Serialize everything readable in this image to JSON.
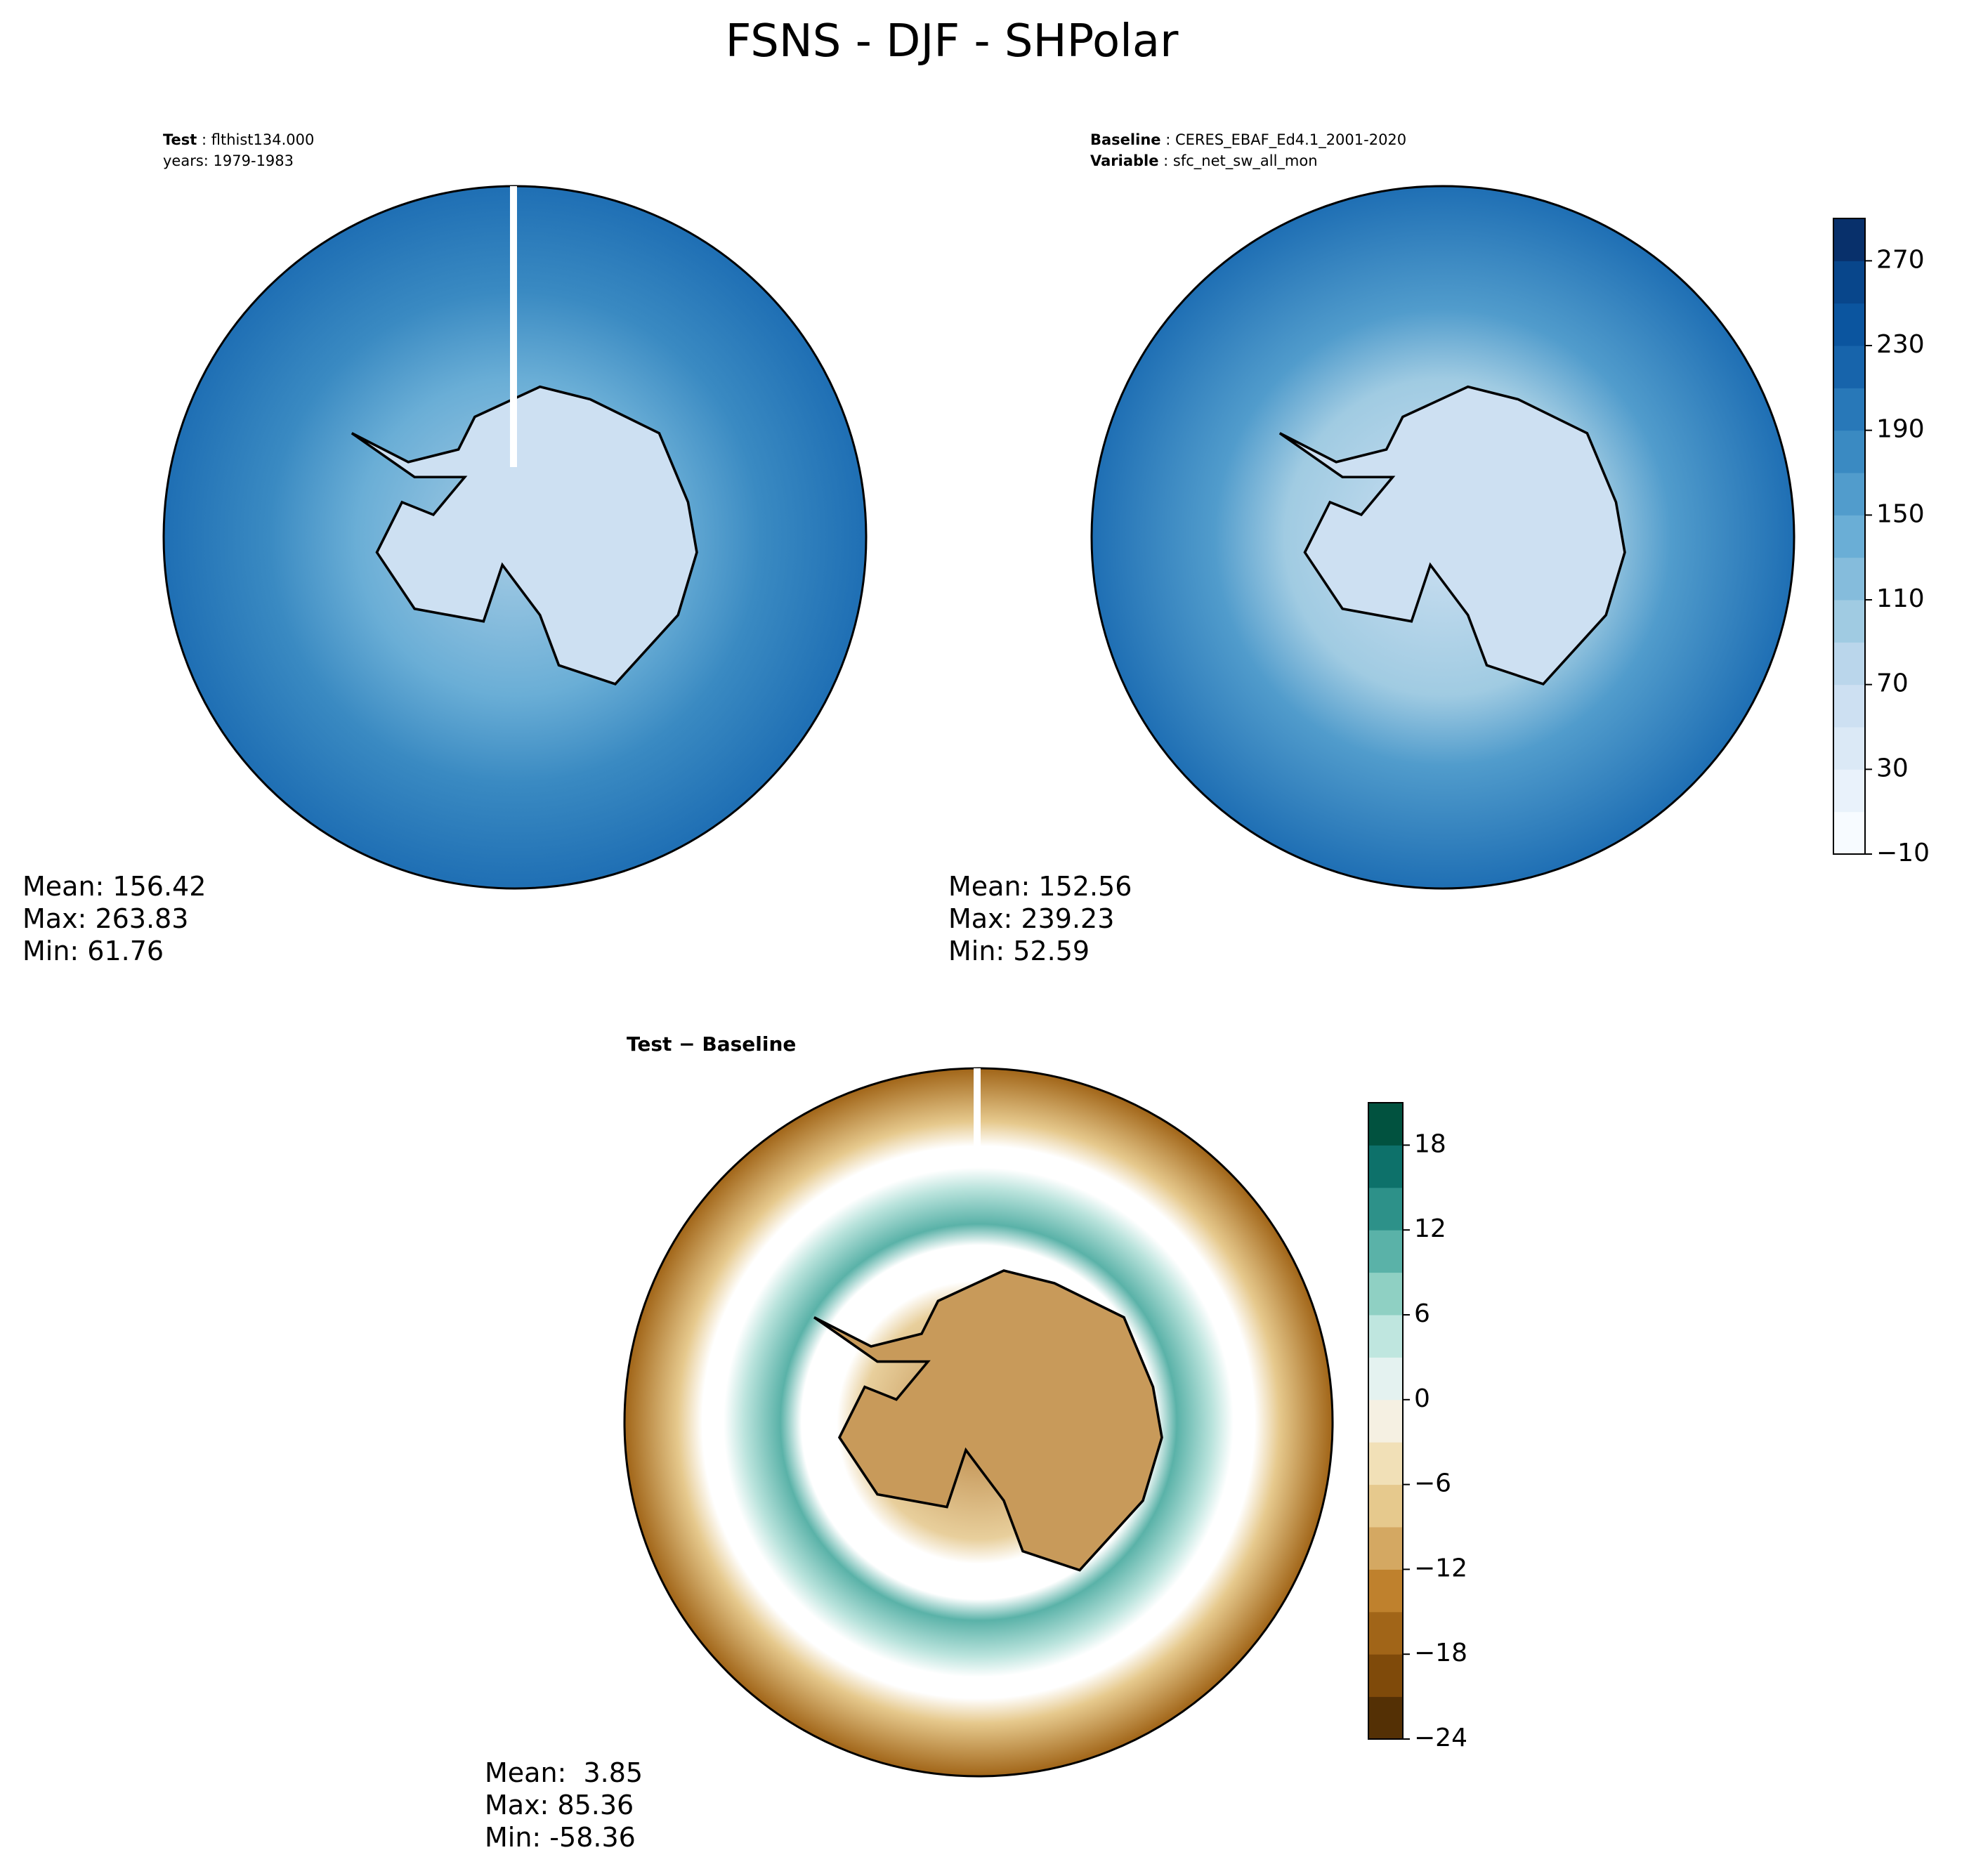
{
  "title": "FSNS - DJF - SHPolar",
  "panels": [
    {
      "label_bold": "Test",
      "label_text": "flthist134.000",
      "label_line2": "years: 1979-1983",
      "stats": [
        "Mean: 156.42",
        "Max: 263.83",
        "Min: 61.76"
      ]
    },
    {
      "label_bold": "Baseline",
      "label_text": "CERES_EBAF_Ed4.1_2001-2020",
      "label_bold2": "Variable",
      "label_text2": "sfc_net_sw_all_mon",
      "stats": [
        "Mean: 152.56",
        "Max: 239.23",
        "Min: 52.59"
      ]
    },
    {
      "title": "Test − Baseline",
      "stats": [
        "Mean:  3.85",
        "Max: 85.36",
        "Min: -58.36"
      ]
    }
  ],
  "colorbars": [
    {
      "lim": [
        -10,
        290
      ],
      "ticks": [
        {
          "value": -10,
          "label": "−10"
        },
        30,
        70,
        110,
        150,
        190,
        230,
        270
      ],
      "colors": [
        "#f7fbff",
        "#e9f2fb",
        "#dbe9f6",
        "#cde0f2",
        "#bad6eb",
        "#a0cbe2",
        "#85bcdc",
        "#6aaed6",
        "#519ccc",
        "#3a8ac2",
        "#2878b8",
        "#1764ab",
        "#0b559f",
        "#08468b",
        "#08306b"
      ]
    },
    {
      "lim": [
        -24,
        21
      ],
      "ticks": [
        {
          "value": -24,
          "label": "−24"
        },
        {
          "value": -18,
          "label": "−18"
        },
        {
          "value": -12,
          "label": "−12"
        },
        {
          "value": -6,
          "label": "−6"
        },
        0,
        6,
        12,
        18
      ],
      "colors": [
        "#543005",
        "#7f4a0a",
        "#a16518",
        "#bf812d",
        "#d4a862",
        "#e6c98d",
        "#f1e0b7",
        "#f5f0e2",
        "#e4f2f0",
        "#bfe6df",
        "#8fd0c3",
        "#5ab2a8",
        "#2d9189",
        "#0d716a",
        "#01523f"
      ]
    }
  ]
}
